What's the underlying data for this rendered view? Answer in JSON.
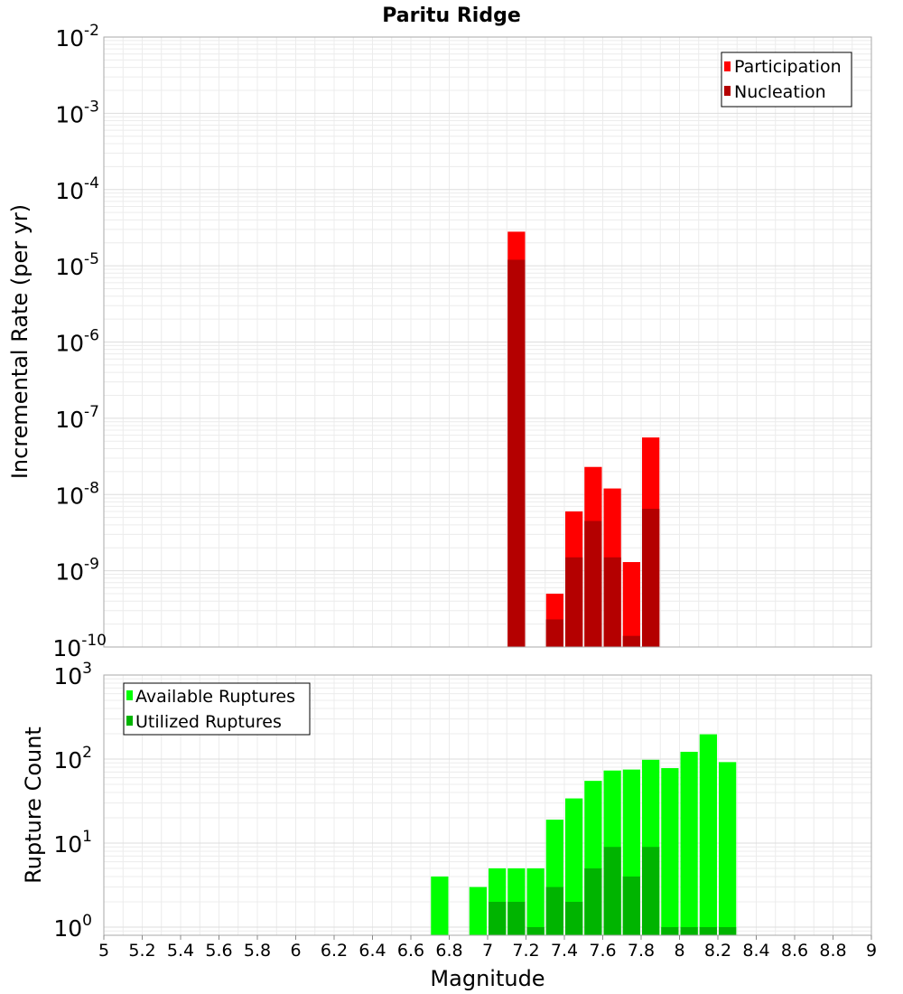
{
  "title": "Paritu Ridge",
  "xlabel": "Magnitude",
  "chart_data": [
    {
      "type": "bar",
      "scale": "log",
      "ylabel": "Incremental Rate (per yr)",
      "ylim": [
        1e-10,
        0.01
      ],
      "xlim": [
        5,
        9
      ],
      "yticks": [
        {
          "base": "10",
          "exp": "-10"
        },
        {
          "base": "10",
          "exp": "-9"
        },
        {
          "base": "10",
          "exp": "-8"
        },
        {
          "base": "10",
          "exp": "-7"
        },
        {
          "base": "10",
          "exp": "-6"
        },
        {
          "base": "10",
          "exp": "-5"
        },
        {
          "base": "10",
          "exp": "-4"
        },
        {
          "base": "10",
          "exp": "-3"
        },
        {
          "base": "10",
          "exp": "-2"
        }
      ],
      "legend_position": "top-right",
      "grid": true,
      "series": [
        {
          "name": "Participation",
          "color": "#ff0000",
          "points": [
            {
              "x": 7.15,
              "y": 2.8e-05
            },
            {
              "x": 7.35,
              "y": 5e-10
            },
            {
              "x": 7.45,
              "y": 6e-09
            },
            {
              "x": 7.55,
              "y": 2.3e-08
            },
            {
              "x": 7.65,
              "y": 1.2e-08
            },
            {
              "x": 7.75,
              "y": 1.3e-09
            },
            {
              "x": 7.85,
              "y": 5.6e-08
            }
          ]
        },
        {
          "name": "Nucleation",
          "color": "#b40000",
          "points": [
            {
              "x": 7.15,
              "y": 1.2e-05
            },
            {
              "x": 7.35,
              "y": 2.3e-10
            },
            {
              "x": 7.45,
              "y": 1.5e-09
            },
            {
              "x": 7.55,
              "y": 4.5e-09
            },
            {
              "x": 7.65,
              "y": 1.5e-09
            },
            {
              "x": 7.75,
              "y": 1.4e-10
            },
            {
              "x": 7.85,
              "y": 6.5e-09
            }
          ]
        }
      ]
    },
    {
      "type": "bar",
      "scale": "log",
      "ylabel": "Rupture Count",
      "ylim": [
        0.8,
        1000
      ],
      "xlim": [
        5,
        9
      ],
      "yticks": [
        {
          "base": "10",
          "exp": "0"
        },
        {
          "base": "10",
          "exp": "1"
        },
        {
          "base": "10",
          "exp": "2"
        },
        {
          "base": "10",
          "exp": "3"
        }
      ],
      "xticks": [
        "5",
        "5.2",
        "5.4",
        "5.6",
        "5.8",
        "6",
        "6.2",
        "6.4",
        "6.6",
        "6.8",
        "7",
        "7.2",
        "7.4",
        "7.6",
        "7.8",
        "8",
        "8.2",
        "8.4",
        "8.6",
        "8.8",
        "9"
      ],
      "legend_position": "top-left",
      "grid": true,
      "series": [
        {
          "name": "Available Ruptures",
          "color": "#00ff00",
          "points": [
            {
              "x": 6.75,
              "y": 4
            },
            {
              "x": 6.95,
              "y": 3
            },
            {
              "x": 7.05,
              "y": 5
            },
            {
              "x": 7.15,
              "y": 5
            },
            {
              "x": 7.25,
              "y": 5
            },
            {
              "x": 7.35,
              "y": 19
            },
            {
              "x": 7.45,
              "y": 34
            },
            {
              "x": 7.55,
              "y": 55
            },
            {
              "x": 7.65,
              "y": 73
            },
            {
              "x": 7.75,
              "y": 75
            },
            {
              "x": 7.85,
              "y": 98
            },
            {
              "x": 7.95,
              "y": 78
            },
            {
              "x": 8.05,
              "y": 122
            },
            {
              "x": 8.15,
              "y": 197
            },
            {
              "x": 8.25,
              "y": 92
            }
          ]
        },
        {
          "name": "Utilized Ruptures",
          "color": "#00b400",
          "points": [
            {
              "x": 7.05,
              "y": 2
            },
            {
              "x": 7.15,
              "y": 2
            },
            {
              "x": 7.25,
              "y": 1
            },
            {
              "x": 7.35,
              "y": 3
            },
            {
              "x": 7.45,
              "y": 2
            },
            {
              "x": 7.55,
              "y": 5
            },
            {
              "x": 7.65,
              "y": 9
            },
            {
              "x": 7.75,
              "y": 4
            },
            {
              "x": 7.85,
              "y": 9
            },
            {
              "x": 7.95,
              "y": 1
            },
            {
              "x": 8.05,
              "y": 1
            },
            {
              "x": 8.15,
              "y": 1
            },
            {
              "x": 8.25,
              "y": 1
            }
          ]
        }
      ]
    }
  ]
}
